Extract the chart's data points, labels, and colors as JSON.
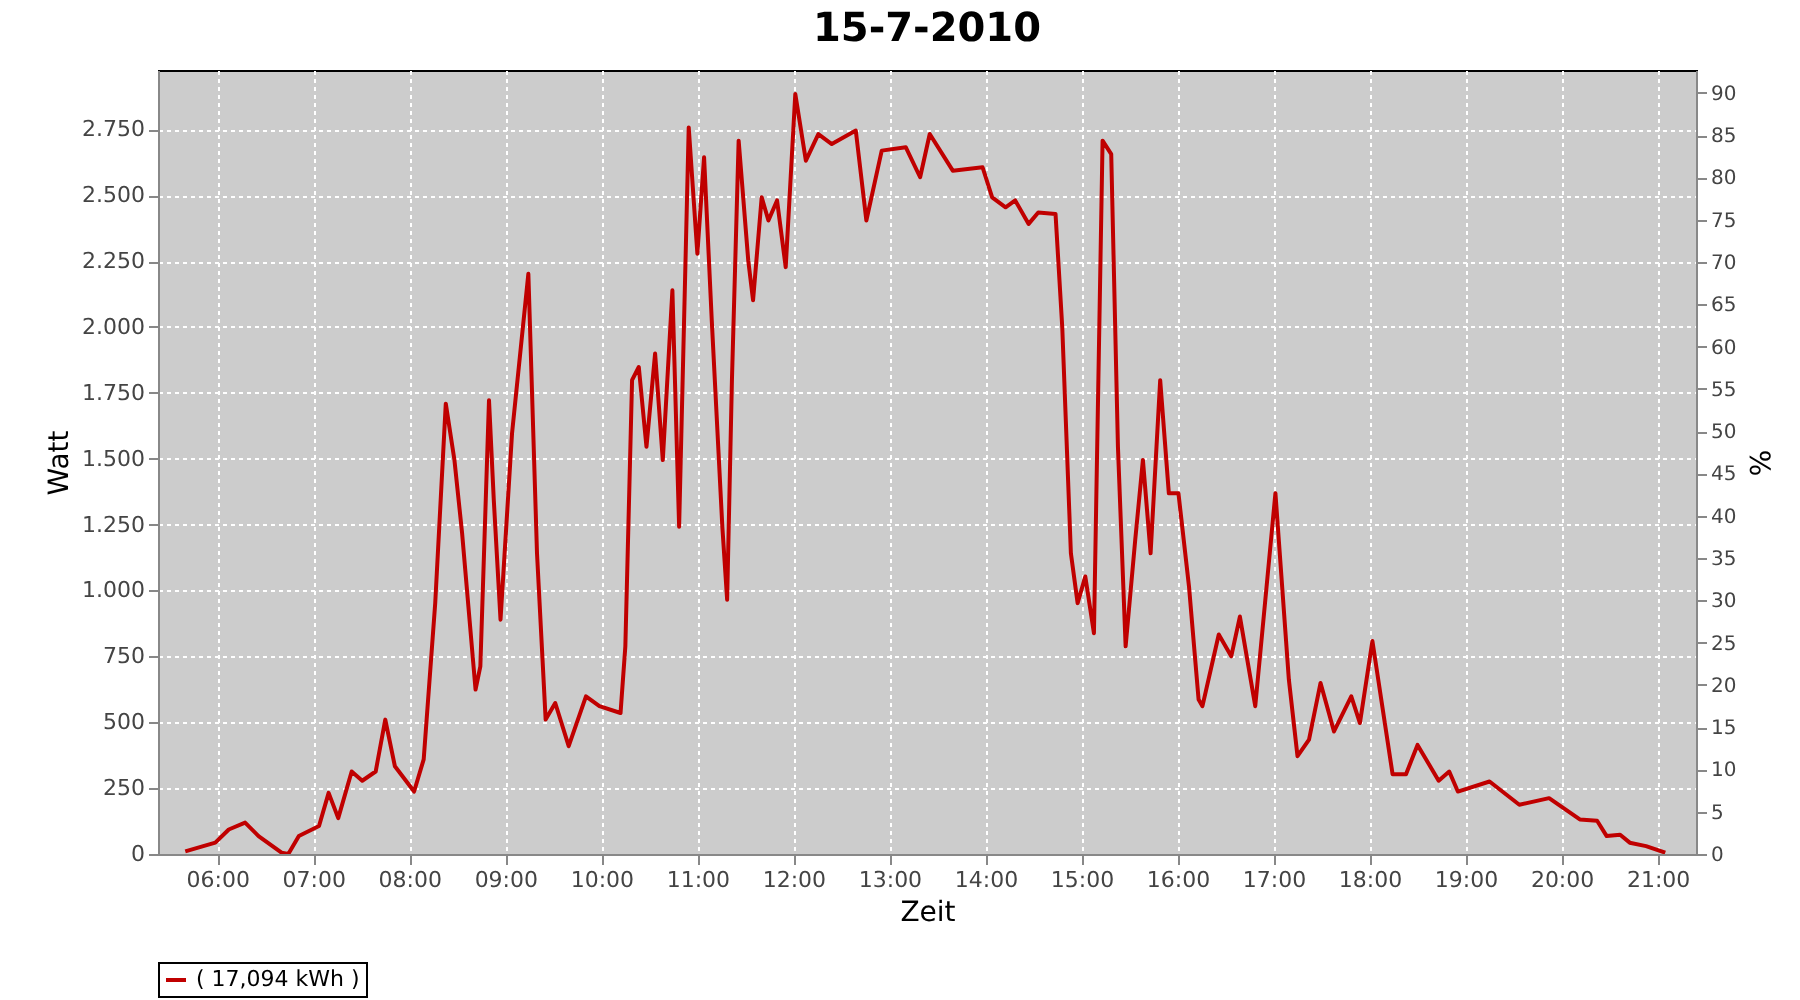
{
  "chart_data": {
    "type": "line",
    "title": "15-7-2010",
    "xlabel": "Zeit",
    "ylabel": "Watt",
    "y2label": "%",
    "x": [
      5.667,
      5.98,
      6.12,
      6.29,
      6.43,
      6.67,
      6.74,
      6.85,
      7.06,
      7.16,
      7.26,
      7.4,
      7.51,
      7.65,
      7.75,
      7.85,
      8.05,
      8.15,
      8.27,
      8.38,
      8.47,
      8.55,
      8.69,
      8.74,
      8.83,
      8.88,
      8.95,
      9.07,
      9.24,
      9.33,
      9.42,
      9.52,
      9.66,
      9.84,
      9.98,
      10.2,
      10.25,
      10.32,
      10.39,
      10.47,
      10.56,
      10.64,
      10.74,
      10.81,
      10.91,
      11.0,
      11.07,
      11.15,
      11.26,
      11.31,
      11.36,
      11.43,
      11.53,
      11.58,
      11.67,
      11.74,
      11.83,
      11.92,
      12.02,
      12.13,
      12.26,
      12.4,
      12.65,
      12.76,
      12.92,
      13.17,
      13.32,
      13.42,
      13.66,
      13.97,
      14.07,
      14.21,
      14.31,
      14.45,
      14.55,
      14.73,
      14.8,
      14.89,
      14.96,
      15.04,
      15.13,
      15.22,
      15.31,
      15.38,
      15.46,
      15.56,
      15.64,
      15.72,
      15.82,
      15.91,
      16.01,
      16.12,
      16.22,
      16.26,
      16.43,
      16.56,
      16.65,
      16.81,
      17.02,
      17.16,
      17.25,
      17.37,
      17.49,
      17.63,
      17.81,
      17.9,
      18.03,
      18.24,
      18.38,
      18.5,
      18.72,
      18.83,
      18.92,
      19.25,
      19.56,
      19.87,
      20.19,
      20.37,
      20.47,
      20.61,
      20.71,
      20.88,
      21.08
    ],
    "series": [
      {
        "name": "( 17,094 kWh )",
        "color": "#c00000",
        "values": [
          10,
          43,
          93,
          119,
          68,
          5,
          0,
          68,
          106,
          232,
          136,
          313,
          278,
          313,
          510,
          333,
          237,
          359,
          952,
          1709,
          1495,
          1217,
          624,
          712,
          1722,
          1343,
          889,
          1596,
          2202,
          1141,
          510,
          573,
          409,
          598,
          561,
          535,
          788,
          1798,
          1848,
          1545,
          1899,
          1495,
          2139,
          1242,
          2757,
          2278,
          2644,
          2025,
          1242,
          965,
          1798,
          2707,
          2252,
          2101,
          2492,
          2404,
          2480,
          2227,
          2884,
          2631,
          2732,
          2694,
          2745,
          2404,
          2669,
          2682,
          2568,
          2732,
          2593,
          2606,
          2492,
          2454,
          2480,
          2391,
          2434,
          2429,
          1999,
          1141,
          952,
          1053,
          838,
          2707,
          2656,
          1545,
          788,
          1192,
          1495,
          1141,
          1798,
          1369,
          1369,
          1015,
          586,
          561,
          833,
          750,
          901,
          561,
          1369,
          662,
          371,
          434,
          649,
          465,
          598,
          497,
          808,
          303,
          303,
          414,
          278,
          313,
          237,
          275,
          187,
          212,
          131,
          126,
          68,
          73,
          43,
          30,
          5
        ]
      }
    ],
    "xlim": [
      5.383,
      21.4
    ],
    "xticks": [
      {
        "value": 6,
        "label": "06:00"
      },
      {
        "value": 7,
        "label": "07:00"
      },
      {
        "value": 8,
        "label": "08:00"
      },
      {
        "value": 9,
        "label": "09:00"
      },
      {
        "value": 10,
        "label": "10:00"
      },
      {
        "value": 11,
        "label": "11:00"
      },
      {
        "value": 12,
        "label": "12:00"
      },
      {
        "value": 13,
        "label": "13:00"
      },
      {
        "value": 14,
        "label": "14:00"
      },
      {
        "value": 15,
        "label": "15:00"
      },
      {
        "value": 16,
        "label": "16:00"
      },
      {
        "value": 17,
        "label": "17:00"
      },
      {
        "value": 18,
        "label": "18:00"
      },
      {
        "value": 19,
        "label": "19:00"
      },
      {
        "value": 20,
        "label": "20:00"
      },
      {
        "value": 21,
        "label": "21:00"
      }
    ],
    "ylim": [
      0,
      2975
    ],
    "yticks": [
      0,
      250,
      500,
      750,
      {
        "value": 1000,
        "label": "1.000"
      },
      {
        "value": 1250,
        "label": "1.250"
      },
      {
        "value": 1500,
        "label": "1.500"
      },
      {
        "value": 1750,
        "label": "1.750"
      },
      {
        "value": 2000,
        "label": "2.000"
      },
      {
        "value": 2250,
        "label": "2.250"
      },
      {
        "value": 2500,
        "label": "2.500"
      },
      {
        "value": 2750,
        "label": "2.750"
      }
    ],
    "y2lim": [
      0,
      92.7
    ],
    "y2ticks": [
      0,
      5,
      10,
      15,
      20,
      25,
      30,
      35,
      40,
      45,
      50,
      55,
      60,
      65,
      70,
      75,
      80,
      85,
      90
    ],
    "grid": true,
    "legend": "bottom",
    "marker": "none",
    "line_style": "solid"
  }
}
